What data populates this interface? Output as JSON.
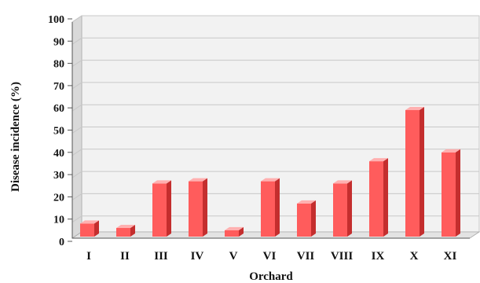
{
  "chart_data": {
    "type": "bar",
    "title": "",
    "xlabel": "Orchard",
    "ylabel": "Disease incidence (%)",
    "categories": [
      "I",
      "II",
      "III",
      "IV",
      "V",
      "VI",
      "VII",
      "VIII",
      "IX",
      "X",
      "XI"
    ],
    "values": [
      8,
      6,
      26,
      27,
      5,
      27,
      17,
      26,
      36,
      59,
      40
    ],
    "ylim": [
      0,
      100
    ],
    "yticks": [
      "0",
      "10",
      "20",
      "30",
      "40",
      "50",
      "60",
      "70",
      "80",
      "90",
      "100"
    ],
    "grid": true,
    "legend": "none",
    "colors": {
      "bar_front": "#ff5c5c",
      "bar_side": "#c42e2e",
      "bar_top": "#ffb0b0",
      "wall_back": "#f2f2f2",
      "wall_left": "#d9d9d9",
      "floor": "#e3e3e3",
      "grid": "#c8c8c8"
    }
  }
}
